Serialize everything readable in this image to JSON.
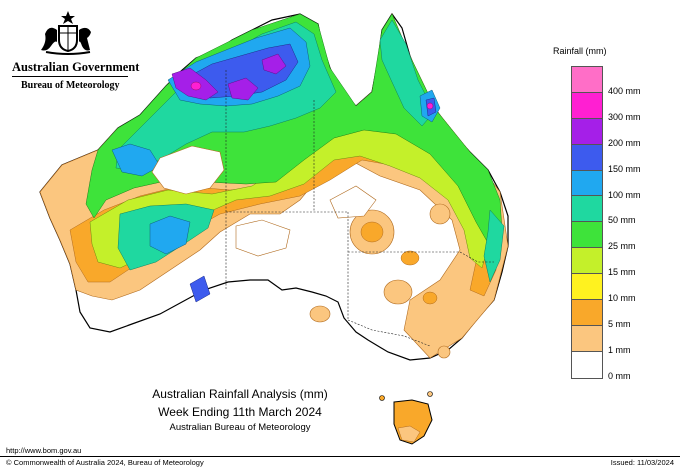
{
  "header": {
    "government": "Australian Government",
    "bureau": "Bureau of Meteorology"
  },
  "legend": {
    "title": "Rainfall (mm)",
    "items": [
      {
        "label": "400 mm",
        "color": "#ff6ec7"
      },
      {
        "label": "300 mm",
        "color": "#ff1fd2"
      },
      {
        "label": "200 mm",
        "color": "#a51fe8"
      },
      {
        "label": "150 mm",
        "color": "#3d5bee"
      },
      {
        "label": "100 mm",
        "color": "#20a8f0"
      },
      {
        "label": "50 mm",
        "color": "#1fd8a0"
      },
      {
        "label": "25 mm",
        "color": "#3ee33a"
      },
      {
        "label": "15 mm",
        "color": "#c4f02a"
      },
      {
        "label": "10 mm",
        "color": "#fff21f"
      },
      {
        "label": "5 mm",
        "color": "#f9a82a"
      },
      {
        "label": "1 mm",
        "color": "#fbc67f"
      },
      {
        "label": "0 mm",
        "color": "#ffffff"
      }
    ]
  },
  "caption": {
    "line1": "Australian Rainfall Analysis (mm)",
    "line2": "Week Ending 11th March 2024",
    "line3": "Australian Bureau of Meteorology"
  },
  "footer": {
    "url": "http://www.bom.gov.au",
    "copyright": "© Commonwealth of Australia 2024, Bureau of Meteorology",
    "issued": "Issued: 11/03/2024"
  }
}
